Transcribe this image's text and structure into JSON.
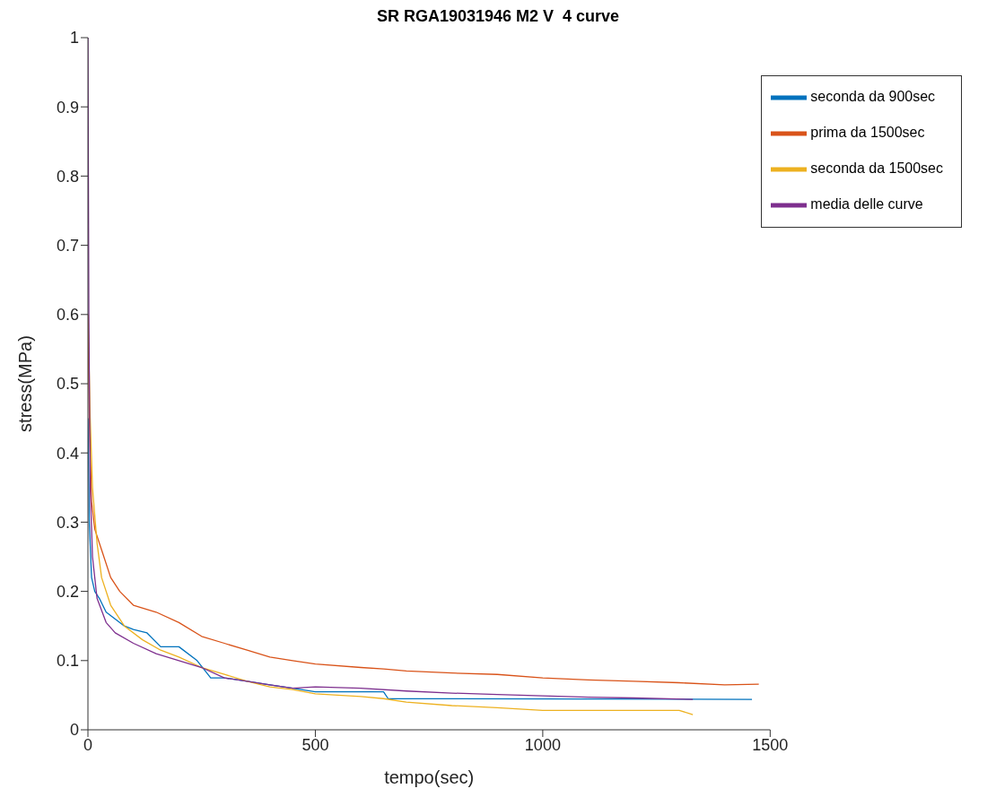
{
  "chart_data": {
    "type": "line",
    "title": "SR RGA19031946 M2 V  4 curve",
    "xlabel": "tempo(sec)",
    "ylabel": "stress(MPa)",
    "xlim": [
      0,
      1500
    ],
    "xticks": [
      0,
      500,
      1000,
      1500
    ],
    "ylim": [
      0,
      1
    ],
    "yticks": [
      0,
      0.1,
      0.2,
      0.3,
      0.4,
      0.5,
      0.6,
      0.7,
      0.8,
      0.9,
      1
    ],
    "grid": false,
    "legend": "top right",
    "marker": "none",
    "line_style": "solid",
    "series": [
      {
        "name": "seconda da 900sec",
        "color": "#0072bd",
        "x": [
          0,
          3,
          8,
          15,
          25,
          40,
          60,
          80,
          100,
          130,
          160,
          200,
          240,
          270,
          300,
          350,
          400,
          450,
          500,
          550,
          600,
          650,
          660,
          1460
        ],
        "values": [
          0.45,
          0.3,
          0.22,
          0.2,
          0.19,
          0.17,
          0.16,
          0.15,
          0.145,
          0.14,
          0.12,
          0.12,
          0.1,
          0.075,
          0.075,
          0.07,
          0.065,
          0.06,
          0.055,
          0.055,
          0.055,
          0.055,
          0.045,
          0.044
        ]
      },
      {
        "name": "prima da 1500sec",
        "color": "#d95319",
        "x": [
          0,
          3,
          8,
          15,
          30,
          50,
          70,
          100,
          150,
          200,
          250,
          300,
          350,
          400,
          450,
          500,
          600,
          650,
          700,
          800,
          900,
          1000,
          1100,
          1200,
          1300,
          1400,
          1475
        ],
        "values": [
          0.6,
          0.45,
          0.33,
          0.29,
          0.26,
          0.22,
          0.2,
          0.18,
          0.17,
          0.155,
          0.135,
          0.125,
          0.115,
          0.105,
          0.1,
          0.095,
          0.09,
          0.088,
          0.085,
          0.082,
          0.08,
          0.075,
          0.072,
          0.07,
          0.068,
          0.065,
          0.066
        ]
      },
      {
        "name": "seconda da 1500sec",
        "color": "#edb120",
        "x": [
          0,
          5,
          10,
          20,
          30,
          50,
          80,
          120,
          160,
          200,
          250,
          300,
          350,
          400,
          450,
          500,
          600,
          650,
          700,
          800,
          900,
          1000,
          1100,
          1200,
          1300,
          1330
        ],
        "values": [
          0.6,
          0.45,
          0.35,
          0.27,
          0.22,
          0.18,
          0.15,
          0.13,
          0.115,
          0.105,
          0.09,
          0.08,
          0.07,
          0.062,
          0.058,
          0.052,
          0.048,
          0.045,
          0.04,
          0.035,
          0.032,
          0.028,
          0.028,
          0.028,
          0.028,
          0.022
        ]
      },
      {
        "name": "media delle curve",
        "color": "#7e2f8e",
        "x": [
          0,
          2,
          5,
          10,
          20,
          40,
          60,
          100,
          150,
          200,
          250,
          300,
          350,
          400,
          450,
          500,
          600,
          700,
          800,
          900,
          1000,
          1100,
          1200,
          1330
        ],
        "values": [
          1.0,
          0.6,
          0.35,
          0.25,
          0.19,
          0.155,
          0.14,
          0.125,
          0.11,
          0.1,
          0.09,
          0.075,
          0.07,
          0.065,
          0.06,
          0.062,
          0.06,
          0.056,
          0.053,
          0.051,
          0.049,
          0.047,
          0.046,
          0.044
        ]
      }
    ]
  }
}
